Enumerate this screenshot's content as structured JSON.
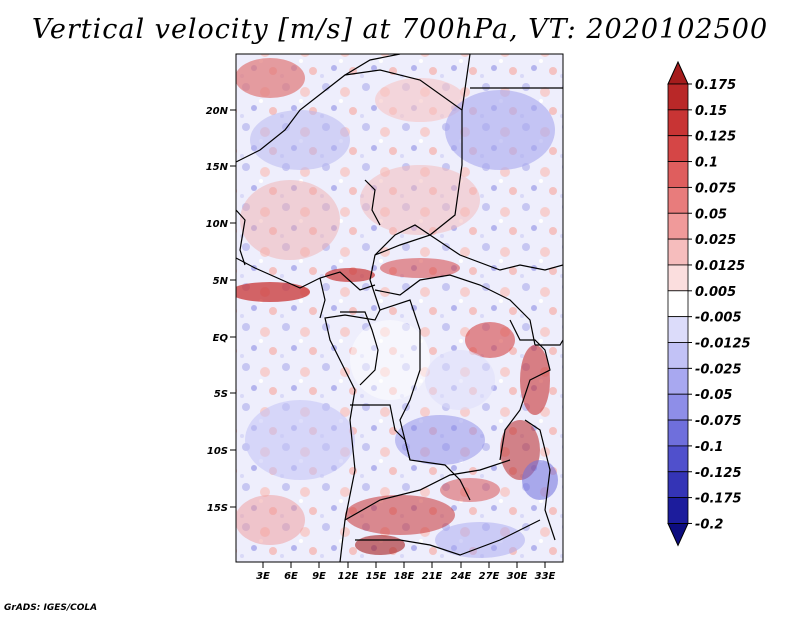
{
  "title": "Vertical velocity [m/s] at 700hPa, VT: 2020102500",
  "credit": "GrADS: IGES/COLA",
  "map": {
    "lat_ticks": [
      "20N",
      "15N",
      "10N",
      "5N",
      "EQ",
      "5S",
      "10S",
      "15S"
    ],
    "lon_ticks": [
      "3E",
      "6E",
      "9E",
      "12E",
      "15E",
      "18E",
      "21E",
      "24E",
      "27E",
      "30E",
      "33E"
    ]
  },
  "colorbar": {
    "labels": [
      "0.175",
      "0.15",
      "0.125",
      "0.1",
      "0.075",
      "0.05",
      "0.025",
      "0.0125",
      "0.005",
      "-0.005",
      "-0.0125",
      "-0.025",
      "-0.05",
      "-0.075",
      "-0.1",
      "-0.125",
      "-0.175",
      "-0.2"
    ],
    "colors": [
      "#a51c1c",
      "#b92828",
      "#c83434",
      "#d54646",
      "#df5e5e",
      "#e87c7c",
      "#f09a9a",
      "#f6bdbd",
      "#fbdede",
      "#ffffff",
      "#dcdcfa",
      "#c2c2f6",
      "#a8a8f0",
      "#8e8ee8",
      "#6f6fdc",
      "#5050cc",
      "#3434b6",
      "#1c1c9c",
      "#0d0d80"
    ]
  }
}
